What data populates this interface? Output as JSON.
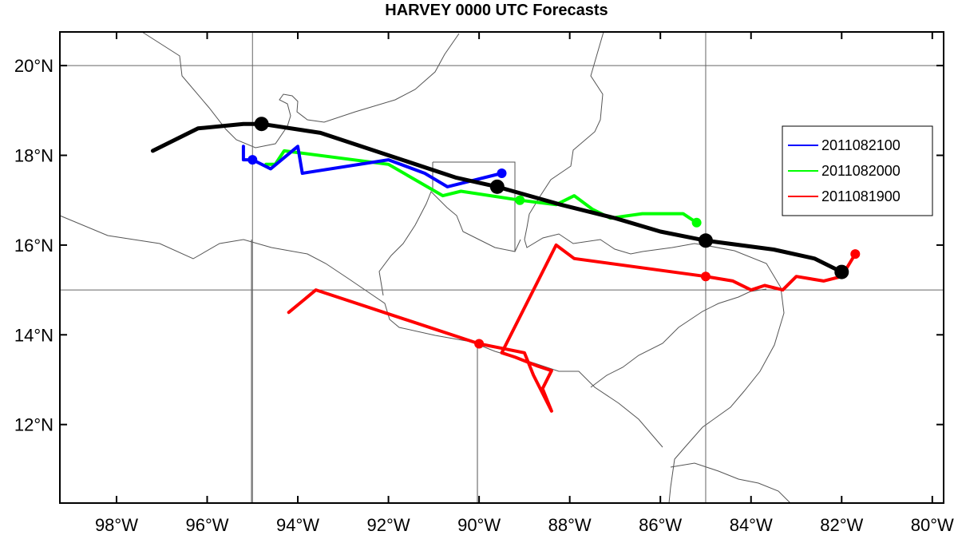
{
  "title": "HARVEY 0000 UTC Forecasts",
  "chart_data": {
    "type": "line",
    "map": "track forecast map",
    "xlim": [
      -99.25,
      -79.75
    ],
    "ylim": [
      10.25,
      20.75
    ],
    "x_ticks": [
      -98,
      -96,
      -94,
      -92,
      -90,
      -88,
      -86,
      -84,
      -82,
      -80
    ],
    "x_tick_labels": [
      "98°W",
      "96°W",
      "94°W",
      "92°W",
      "90°W",
      "88°W",
      "86°W",
      "84°W",
      "82°W",
      "80°W"
    ],
    "y_ticks": [
      12,
      14,
      16,
      18,
      20
    ],
    "y_tick_labels": [
      "12°N",
      "14°N",
      "16°N",
      "18°N",
      "20°N"
    ],
    "grid_lon": [
      -95,
      -85
    ],
    "grid_lat": [
      15,
      20
    ],
    "legend_position": "right",
    "best_track": {
      "color": "#000000",
      "points": [
        [
          -97.2,
          18.1
        ],
        [
          -96.2,
          18.6
        ],
        [
          -95.2,
          18.7
        ],
        [
          -94.8,
          18.7
        ],
        [
          -93.5,
          18.5
        ],
        [
          -92.0,
          18.0
        ],
        [
          -90.5,
          17.5
        ],
        [
          -89.6,
          17.3
        ],
        [
          -88.2,
          16.9
        ],
        [
          -87.0,
          16.6
        ],
        [
          -86.0,
          16.3
        ],
        [
          -85.0,
          16.1
        ],
        [
          -83.5,
          15.9
        ],
        [
          -82.6,
          15.7
        ],
        [
          -82.0,
          15.4
        ]
      ],
      "markers": [
        [
          -94.8,
          18.7
        ],
        [
          -89.6,
          17.3
        ],
        [
          -85.0,
          16.1
        ],
        [
          -82.0,
          15.4
        ]
      ]
    },
    "series": [
      {
        "name": "2011082100",
        "color": "#0000ff",
        "points": [
          [
            -89.5,
            17.6
          ],
          [
            -90.7,
            17.3
          ],
          [
            -91.2,
            17.6
          ],
          [
            -92.0,
            17.9
          ],
          [
            -93.9,
            17.6
          ],
          [
            -94.0,
            18.2
          ],
          [
            -94.6,
            17.7
          ],
          [
            -95.0,
            17.9
          ],
          [
            -95.2,
            17.9
          ],
          [
            -95.2,
            18.2
          ]
        ],
        "markers": [
          [
            -89.5,
            17.6
          ],
          [
            -95.0,
            17.9
          ]
        ]
      },
      {
        "name": "2011082000",
        "color": "#00ff00",
        "points": [
          [
            -85.2,
            16.5
          ],
          [
            -85.5,
            16.7
          ],
          [
            -86.4,
            16.7
          ],
          [
            -87.1,
            16.6
          ],
          [
            -87.5,
            16.8
          ],
          [
            -87.9,
            17.1
          ],
          [
            -88.3,
            16.9
          ],
          [
            -89.1,
            17.0
          ],
          [
            -90.4,
            17.2
          ],
          [
            -90.8,
            17.1
          ],
          [
            -92.0,
            17.8
          ],
          [
            -94.3,
            18.1
          ],
          [
            -94.5,
            17.8
          ],
          [
            -94.7,
            17.8
          ]
        ],
        "markers": [
          [
            -85.2,
            16.5
          ],
          [
            -89.1,
            17.0
          ]
        ]
      },
      {
        "name": "2011081900",
        "color": "#ff0000",
        "points": [
          [
            -81.7,
            15.8
          ],
          [
            -82.0,
            15.3
          ],
          [
            -82.4,
            15.2
          ],
          [
            -83.0,
            15.3
          ],
          [
            -83.3,
            15.0
          ],
          [
            -83.7,
            15.1
          ],
          [
            -84.0,
            15.0
          ],
          [
            -84.4,
            15.2
          ],
          [
            -85.0,
            15.3
          ],
          [
            -87.9,
            15.7
          ],
          [
            -88.3,
            16.0
          ],
          [
            -89.5,
            13.6
          ],
          [
            -89.2,
            13.5
          ],
          [
            -88.7,
            13.3
          ],
          [
            -88.4,
            13.2
          ],
          [
            -88.6,
            12.8
          ],
          [
            -88.4,
            12.3
          ],
          [
            -88.8,
            13.1
          ],
          [
            -89.0,
            13.6
          ],
          [
            -90.0,
            13.8
          ],
          [
            -93.6,
            15.0
          ],
          [
            -94.2,
            14.5
          ]
        ],
        "markers": [
          [
            -81.7,
            15.8
          ],
          [
            -85.0,
            15.3
          ],
          [
            -90.0,
            13.8
          ]
        ]
      }
    ]
  }
}
